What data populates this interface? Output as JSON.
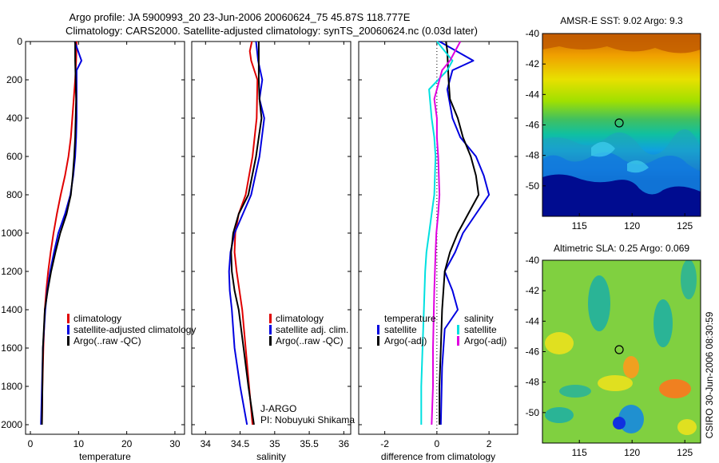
{
  "header": {
    "line1": "Argo profile: JA 5900993_20 23-Jun-2006 20060624_75 45.87S 118.777E",
    "line2": "Climatology: CARS2000. Satellite-adjusted climatology: synTS_20060624.nc (0.03d later)"
  },
  "side_label": "CSIRO 30-Jun-2006 08:30:59",
  "pi_label": {
    "line1": "J-ARGO",
    "line2": "PI: Nobuyuki Shikama"
  },
  "colors": {
    "red": "#e00000",
    "blue": "#0000e0",
    "black": "#000000",
    "cyan": "#00e0e0",
    "magenta": "#e000e0"
  },
  "chart_data": [
    {
      "id": "temperature",
      "type": "line",
      "xlabel": "temperature",
      "xlim": [
        -1,
        32
      ],
      "xticks": [
        0,
        10,
        20,
        30
      ],
      "ylim": [
        2050,
        0
      ],
      "yticks": [
        0,
        200,
        400,
        600,
        800,
        1000,
        1200,
        1400,
        1600,
        1800,
        2000
      ],
      "legend": [
        "climatology",
        "satellite-adjusted climatology",
        "Argo(..raw -QC)"
      ],
      "series": [
        {
          "name": "climatology",
          "color": "red",
          "points": [
            [
              9.6,
              0
            ],
            [
              9.5,
              100
            ],
            [
              9.3,
              200
            ],
            [
              9.0,
              300
            ],
            [
              8.7,
              400
            ],
            [
              8.4,
              500
            ],
            [
              7.9,
              600
            ],
            [
              7.2,
              700
            ],
            [
              6.3,
              800
            ],
            [
              5.5,
              900
            ],
            [
              4.8,
              1000
            ],
            [
              4.2,
              1100
            ],
            [
              3.7,
              1200
            ],
            [
              3.3,
              1300
            ],
            [
              3.0,
              1400
            ],
            [
              2.7,
              1600
            ],
            [
              2.5,
              1800
            ],
            [
              2.4,
              2000
            ]
          ]
        },
        {
          "name": "satellite-adjusted climatology",
          "color": "blue",
          "points": [
            [
              9.2,
              0
            ],
            [
              10.6,
              100
            ],
            [
              9.6,
              150
            ],
            [
              9.6,
              300
            ],
            [
              9.6,
              400
            ],
            [
              9.5,
              500
            ],
            [
              9.3,
              600
            ],
            [
              8.9,
              700
            ],
            [
              8.3,
              800
            ],
            [
              7.2,
              900
            ],
            [
              5.8,
              1000
            ],
            [
              4.9,
              1100
            ],
            [
              4.1,
              1200
            ],
            [
              3.5,
              1300
            ],
            [
              3.1,
              1400
            ],
            [
              2.6,
              1600
            ],
            [
              2.4,
              1800
            ],
            [
              2.2,
              2000
            ]
          ]
        },
        {
          "name": "Argo(..raw -QC)",
          "color": "black",
          "points": [
            [
              9.3,
              0
            ],
            [
              9.3,
              100
            ],
            [
              9.4,
              200
            ],
            [
              9.5,
              300
            ],
            [
              9.4,
              400
            ],
            [
              9.3,
              500
            ],
            [
              9.1,
              600
            ],
            [
              8.8,
              700
            ],
            [
              8.4,
              800
            ],
            [
              7.5,
              900
            ],
            [
              6.2,
              1000
            ],
            [
              5.2,
              1100
            ],
            [
              4.3,
              1200
            ],
            [
              3.6,
              1300
            ],
            [
              3.0,
              1400
            ],
            [
              2.8,
              1500
            ],
            [
              2.6,
              1600
            ],
            [
              2.5,
              1800
            ],
            [
              2.4,
              2000
            ]
          ]
        }
      ]
    },
    {
      "id": "salinity",
      "type": "line",
      "xlabel": "salinity",
      "xlim": [
        33.8,
        36.1
      ],
      "xticks": [
        34,
        34.5,
        35,
        35.5,
        36
      ],
      "xticklabels": [
        "34",
        "34.5",
        "35",
        "35.5",
        "36"
      ],
      "ylim": [
        2050,
        0
      ],
      "yticks": [
        0,
        200,
        400,
        600,
        800,
        1000,
        1200,
        1400,
        1600,
        1800,
        2000
      ],
      "legend": [
        "climatology",
        "satellite adj. clim.",
        "Argo(..raw -QC)"
      ],
      "series": [
        {
          "name": "climatology",
          "color": "red",
          "points": [
            [
              34.67,
              0
            ],
            [
              34.64,
              50
            ],
            [
              34.66,
              100
            ],
            [
              34.75,
              200
            ],
            [
              34.74,
              400
            ],
            [
              34.68,
              600
            ],
            [
              34.58,
              800
            ],
            [
              34.48,
              900
            ],
            [
              34.43,
              1000
            ],
            [
              34.42,
              1100
            ],
            [
              34.45,
              1200
            ],
            [
              34.49,
              1300
            ],
            [
              34.53,
              1400
            ],
            [
              34.58,
              1600
            ],
            [
              34.63,
              1800
            ],
            [
              34.68,
              2000
            ]
          ]
        },
        {
          "name": "satellite adj. clim.",
          "color": "blue",
          "points": [
            [
              34.73,
              0
            ],
            [
              34.76,
              100
            ],
            [
              34.82,
              200
            ],
            [
              34.78,
              300
            ],
            [
              34.85,
              400
            ],
            [
              34.78,
              600
            ],
            [
              34.66,
              800
            ],
            [
              34.54,
              900
            ],
            [
              34.42,
              1000
            ],
            [
              34.36,
              1100
            ],
            [
              34.34,
              1200
            ],
            [
              34.35,
              1300
            ],
            [
              34.38,
              1400
            ],
            [
              34.42,
              1600
            ],
            [
              34.5,
              1800
            ],
            [
              34.6,
              2000
            ]
          ]
        },
        {
          "name": "Argo(..raw -QC)",
          "color": "black",
          "points": [
            [
              34.77,
              0
            ],
            [
              34.77,
              100
            ],
            [
              34.77,
              200
            ],
            [
              34.78,
              300
            ],
            [
              34.81,
              400
            ],
            [
              34.77,
              500
            ],
            [
              34.73,
              600
            ],
            [
              34.62,
              800
            ],
            [
              34.48,
              900
            ],
            [
              34.4,
              1000
            ],
            [
              34.37,
              1100
            ],
            [
              34.38,
              1200
            ],
            [
              34.42,
              1300
            ],
            [
              34.48,
              1400
            ],
            [
              34.55,
              1600
            ],
            [
              34.62,
              1800
            ],
            [
              34.7,
              2000
            ]
          ]
        }
      ]
    },
    {
      "id": "difference",
      "type": "line",
      "xlabel": "difference from climatology",
      "xlim": [
        -3,
        3.1
      ],
      "xticks": [
        -2,
        0,
        2
      ],
      "ylim": [
        2050,
        0
      ],
      "yticks": [
        0,
        200,
        400,
        600,
        800,
        1000,
        1200,
        1400,
        1600,
        1800,
        2000
      ],
      "legend": {
        "temperature": [
          "satellite",
          "Argo(-adj)"
        ],
        "salinity": [
          "satellite",
          "Argo(-adj)"
        ],
        "headers": [
          "temperature",
          "salinity"
        ]
      },
      "series": [
        {
          "name": "temperature satellite",
          "color": "blue",
          "points": [
            [
              0.1,
              0
            ],
            [
              1.4,
              100
            ],
            [
              0.6,
              150
            ],
            [
              0.4,
              250
            ],
            [
              0.6,
              400
            ],
            [
              0.9,
              500
            ],
            [
              1.5,
              600
            ],
            [
              1.8,
              700
            ],
            [
              2.0,
              800
            ],
            [
              1.5,
              900
            ],
            [
              1.0,
              1000
            ],
            [
              0.7,
              1100
            ],
            [
              0.3,
              1200
            ],
            [
              0.6,
              1300
            ],
            [
              0.8,
              1400
            ],
            [
              0.3,
              1500
            ],
            [
              0.2,
              1700
            ],
            [
              0.15,
              2000
            ]
          ]
        },
        {
          "name": "temperature Argo(-adj)",
          "color": "black",
          "points": [
            [
              0.35,
              0
            ],
            [
              0.4,
              50
            ],
            [
              0.45,
              200
            ],
            [
              0.5,
              300
            ],
            [
              0.8,
              400
            ],
            [
              1.0,
              500
            ],
            [
              1.3,
              600
            ],
            [
              1.5,
              700
            ],
            [
              1.6,
              800
            ],
            [
              1.2,
              900
            ],
            [
              0.8,
              1000
            ],
            [
              0.5,
              1100
            ],
            [
              0.3,
              1200
            ],
            [
              0.2,
              1400
            ],
            [
              0.15,
              1600
            ],
            [
              0.1,
              1800
            ],
            [
              0.1,
              2000
            ]
          ]
        },
        {
          "name": "salinity satellite",
          "color": "cyan",
          "points": [
            [
              0.0,
              0
            ],
            [
              0.6,
              100
            ],
            [
              0.4,
              150
            ],
            [
              -0.3,
              250
            ],
            [
              -0.2,
              400
            ],
            [
              -0.1,
              500
            ],
            [
              -0.05,
              600
            ],
            [
              -0.1,
              800
            ],
            [
              -0.2,
              900
            ],
            [
              -0.3,
              1000
            ],
            [
              -0.4,
              1100
            ],
            [
              -0.45,
              1200
            ],
            [
              -0.5,
              1400
            ],
            [
              -0.55,
              1600
            ],
            [
              -0.6,
              1800
            ],
            [
              -0.6,
              2000
            ]
          ]
        },
        {
          "name": "salinity Argo(-adj)",
          "color": "magenta",
          "points": [
            [
              0.9,
              0
            ],
            [
              0.5,
              100
            ],
            [
              0.2,
              150
            ],
            [
              -0.1,
              300
            ],
            [
              0.0,
              400
            ],
            [
              0.0,
              500
            ],
            [
              0.05,
              600
            ],
            [
              0.1,
              800
            ],
            [
              0.05,
              900
            ],
            [
              -0.02,
              1000
            ],
            [
              -0.05,
              1100
            ],
            [
              -0.1,
              1300
            ],
            [
              -0.15,
              1600
            ],
            [
              -0.15,
              1800
            ],
            [
              -0.2,
              2000
            ]
          ]
        }
      ]
    },
    {
      "id": "sst_map",
      "type": "heatmap",
      "title": "AMSR-E SST: 9.02 Argo: 9.3",
      "xlim": [
        111.5,
        126.5
      ],
      "ylim": [
        -52,
        -40
      ],
      "xticks": [
        115,
        120,
        125
      ],
      "yticks": [
        -40,
        -42,
        -44,
        -46,
        -48,
        -50
      ],
      "marker": {
        "lon": 118.777,
        "lat": -45.87
      }
    },
    {
      "id": "sla_map",
      "type": "heatmap",
      "title": "Altimetric SLA: 0.25 Argo: 0.069",
      "xlim": [
        111.5,
        126.5
      ],
      "ylim": [
        -52,
        -40
      ],
      "xticks": [
        115,
        120,
        125
      ],
      "yticks": [
        -40,
        -42,
        -44,
        -46,
        -48,
        -50
      ],
      "marker": {
        "lon": 118.777,
        "lat": -45.87
      }
    }
  ]
}
